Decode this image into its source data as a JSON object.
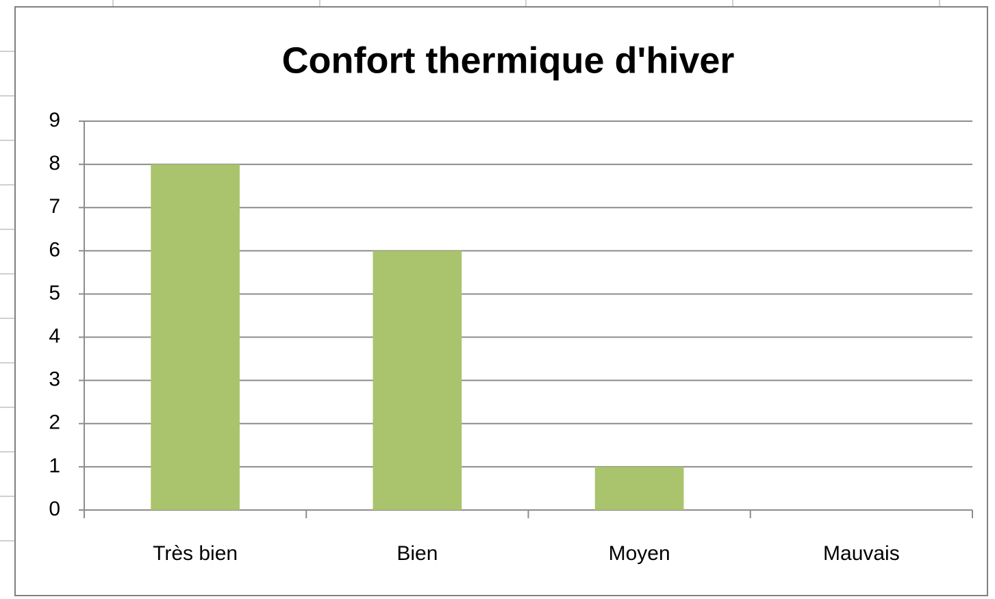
{
  "chart_data": {
    "type": "bar",
    "title": "Confort thermique d'hiver",
    "categories": [
      "Très bien",
      "Bien",
      "Moyen",
      "Mauvais"
    ],
    "values": [
      8,
      6,
      1,
      0
    ],
    "color": "#a9c46c",
    "ylim": [
      0,
      9
    ],
    "yticks": [
      0,
      1,
      2,
      3,
      4,
      5,
      6,
      7,
      8,
      9
    ],
    "grid": true
  }
}
